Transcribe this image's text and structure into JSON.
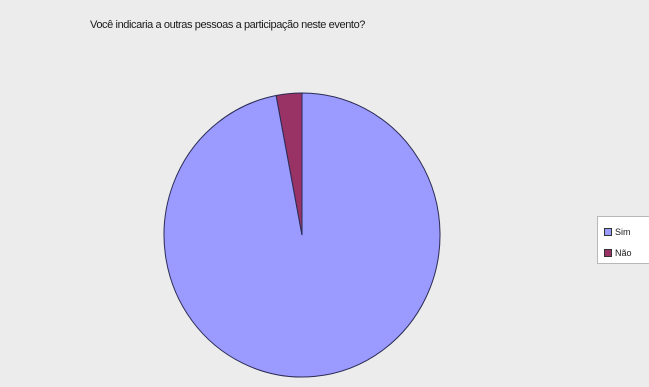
{
  "chart_data": {
    "type": "pie",
    "title": "Você indicaria a outras pessoas a participação neste evento?",
    "categories": [
      "Sim",
      "Não"
    ],
    "values": [
      97,
      3
    ],
    "colors": [
      "#9a9aff",
      "#993366"
    ],
    "legend_position": "right"
  }
}
